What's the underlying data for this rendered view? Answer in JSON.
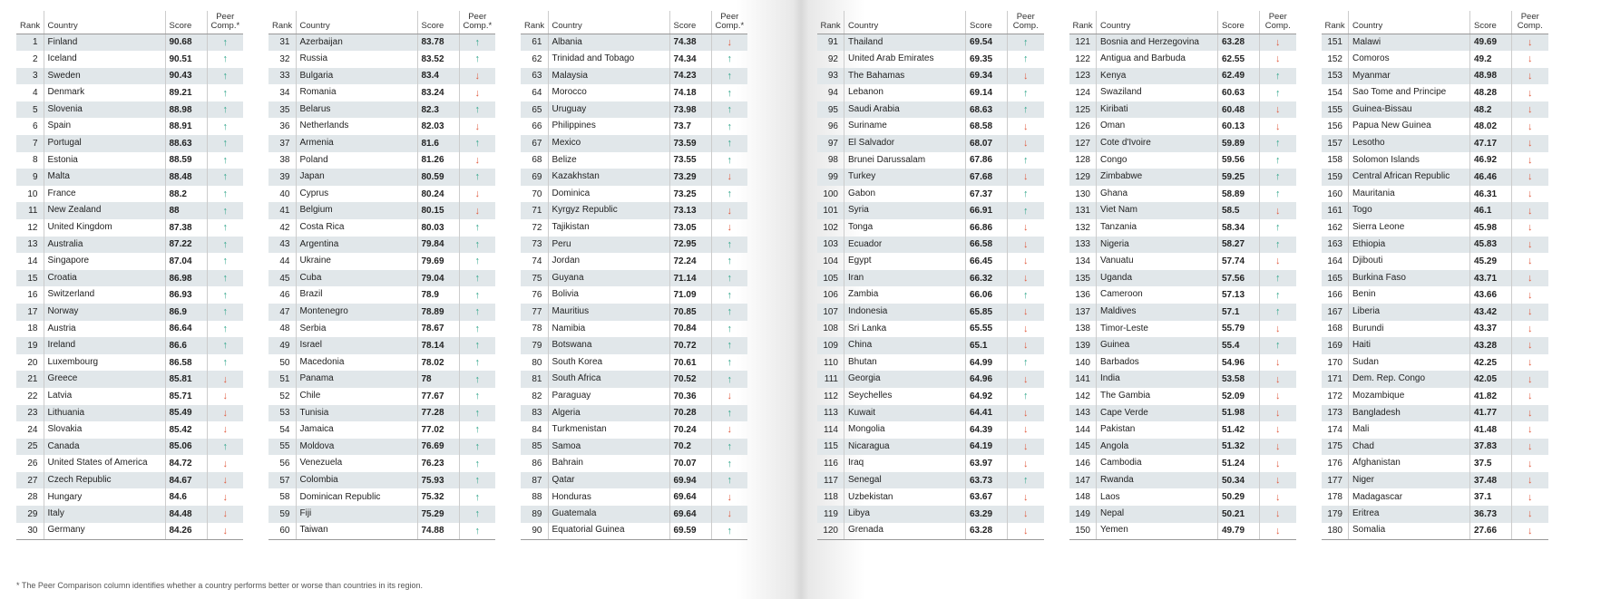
{
  "headers": {
    "rank": "Rank",
    "country": "Country",
    "score": "Score",
    "peer": "Peer\nComp.*",
    "peer_plain": "Peer\nComp."
  },
  "footnote": "* The Peer Comparison column identifies whether a country performs better or worse than countries in its region.",
  "colors": {
    "up": "#2fa58a",
    "down": "#e05a3e",
    "row_alt": "#e1e7ea",
    "border": "#999999"
  },
  "rows": [
    {
      "rank": 1,
      "country": "Finland",
      "score": "90.68",
      "peer": "up"
    },
    {
      "rank": 2,
      "country": "Iceland",
      "score": "90.51",
      "peer": "up"
    },
    {
      "rank": 3,
      "country": "Sweden",
      "score": "90.43",
      "peer": "up"
    },
    {
      "rank": 4,
      "country": "Denmark",
      "score": "89.21",
      "peer": "up"
    },
    {
      "rank": 5,
      "country": "Slovenia",
      "score": "88.98",
      "peer": "up"
    },
    {
      "rank": 6,
      "country": "Spain",
      "score": "88.91",
      "peer": "up"
    },
    {
      "rank": 7,
      "country": "Portugal",
      "score": "88.63",
      "peer": "up"
    },
    {
      "rank": 8,
      "country": "Estonia",
      "score": "88.59",
      "peer": "up"
    },
    {
      "rank": 9,
      "country": "Malta",
      "score": "88.48",
      "peer": "up"
    },
    {
      "rank": 10,
      "country": "France",
      "score": "88.2",
      "peer": "up"
    },
    {
      "rank": 11,
      "country": "New Zealand",
      "score": "88",
      "peer": "up"
    },
    {
      "rank": 12,
      "country": "United Kingdom",
      "score": "87.38",
      "peer": "up"
    },
    {
      "rank": 13,
      "country": "Australia",
      "score": "87.22",
      "peer": "up"
    },
    {
      "rank": 14,
      "country": "Singapore",
      "score": "87.04",
      "peer": "up"
    },
    {
      "rank": 15,
      "country": "Croatia",
      "score": "86.98",
      "peer": "up"
    },
    {
      "rank": 16,
      "country": "Switzerland",
      "score": "86.93",
      "peer": "up"
    },
    {
      "rank": 17,
      "country": "Norway",
      "score": "86.9",
      "peer": "up"
    },
    {
      "rank": 18,
      "country": "Austria",
      "score": "86.64",
      "peer": "up"
    },
    {
      "rank": 19,
      "country": "Ireland",
      "score": "86.6",
      "peer": "up"
    },
    {
      "rank": 20,
      "country": "Luxembourg",
      "score": "86.58",
      "peer": "up"
    },
    {
      "rank": 21,
      "country": "Greece",
      "score": "85.81",
      "peer": "down"
    },
    {
      "rank": 22,
      "country": "Latvia",
      "score": "85.71",
      "peer": "down"
    },
    {
      "rank": 23,
      "country": "Lithuania",
      "score": "85.49",
      "peer": "down"
    },
    {
      "rank": 24,
      "country": "Slovakia",
      "score": "85.42",
      "peer": "down"
    },
    {
      "rank": 25,
      "country": "Canada",
      "score": "85.06",
      "peer": "up"
    },
    {
      "rank": 26,
      "country": "United States of America",
      "score": "84.72",
      "peer": "down"
    },
    {
      "rank": 27,
      "country": "Czech Republic",
      "score": "84.67",
      "peer": "down"
    },
    {
      "rank": 28,
      "country": "Hungary",
      "score": "84.6",
      "peer": "down"
    },
    {
      "rank": 29,
      "country": "Italy",
      "score": "84.48",
      "peer": "down"
    },
    {
      "rank": 30,
      "country": "Germany",
      "score": "84.26",
      "peer": "down"
    },
    {
      "rank": 31,
      "country": "Azerbaijan",
      "score": "83.78",
      "peer": "up"
    },
    {
      "rank": 32,
      "country": "Russia",
      "score": "83.52",
      "peer": "up"
    },
    {
      "rank": 33,
      "country": "Bulgaria",
      "score": "83.4",
      "peer": "down"
    },
    {
      "rank": 34,
      "country": "Romania",
      "score": "83.24",
      "peer": "down"
    },
    {
      "rank": 35,
      "country": "Belarus",
      "score": "82.3",
      "peer": "up"
    },
    {
      "rank": 36,
      "country": "Netherlands",
      "score": "82.03",
      "peer": "down"
    },
    {
      "rank": 37,
      "country": "Armenia",
      "score": "81.6",
      "peer": "up"
    },
    {
      "rank": 38,
      "country": "Poland",
      "score": "81.26",
      "peer": "down"
    },
    {
      "rank": 39,
      "country": "Japan",
      "score": "80.59",
      "peer": "up"
    },
    {
      "rank": 40,
      "country": "Cyprus",
      "score": "80.24",
      "peer": "down"
    },
    {
      "rank": 41,
      "country": "Belgium",
      "score": "80.15",
      "peer": "down"
    },
    {
      "rank": 42,
      "country": "Costa Rica",
      "score": "80.03",
      "peer": "up"
    },
    {
      "rank": 43,
      "country": "Argentina",
      "score": "79.84",
      "peer": "up"
    },
    {
      "rank": 44,
      "country": "Ukraine",
      "score": "79.69",
      "peer": "up"
    },
    {
      "rank": 45,
      "country": "Cuba",
      "score": "79.04",
      "peer": "up"
    },
    {
      "rank": 46,
      "country": "Brazil",
      "score": "78.9",
      "peer": "up"
    },
    {
      "rank": 47,
      "country": "Montenegro",
      "score": "78.89",
      "peer": "up"
    },
    {
      "rank": 48,
      "country": "Serbia",
      "score": "78.67",
      "peer": "up"
    },
    {
      "rank": 49,
      "country": "Israel",
      "score": "78.14",
      "peer": "up"
    },
    {
      "rank": 50,
      "country": "Macedonia",
      "score": "78.02",
      "peer": "up"
    },
    {
      "rank": 51,
      "country": "Panama",
      "score": "78",
      "peer": "up"
    },
    {
      "rank": 52,
      "country": "Chile",
      "score": "77.67",
      "peer": "up"
    },
    {
      "rank": 53,
      "country": "Tunisia",
      "score": "77.28",
      "peer": "up"
    },
    {
      "rank": 54,
      "country": "Jamaica",
      "score": "77.02",
      "peer": "up"
    },
    {
      "rank": 55,
      "country": "Moldova",
      "score": "76.69",
      "peer": "up"
    },
    {
      "rank": 56,
      "country": "Venezuela",
      "score": "76.23",
      "peer": "up"
    },
    {
      "rank": 57,
      "country": "Colombia",
      "score": "75.93",
      "peer": "up"
    },
    {
      "rank": 58,
      "country": "Dominican Republic",
      "score": "75.32",
      "peer": "up"
    },
    {
      "rank": 59,
      "country": "Fiji",
      "score": "75.29",
      "peer": "up"
    },
    {
      "rank": 60,
      "country": "Taiwan",
      "score": "74.88",
      "peer": "up"
    },
    {
      "rank": 61,
      "country": "Albania",
      "score": "74.38",
      "peer": "down"
    },
    {
      "rank": 62,
      "country": "Trinidad and Tobago",
      "score": "74.34",
      "peer": "up"
    },
    {
      "rank": 63,
      "country": "Malaysia",
      "score": "74.23",
      "peer": "up"
    },
    {
      "rank": 64,
      "country": "Morocco",
      "score": "74.18",
      "peer": "up"
    },
    {
      "rank": 65,
      "country": "Uruguay",
      "score": "73.98",
      "peer": "up"
    },
    {
      "rank": 66,
      "country": "Philippines",
      "score": "73.7",
      "peer": "up"
    },
    {
      "rank": 67,
      "country": "Mexico",
      "score": "73.59",
      "peer": "up"
    },
    {
      "rank": 68,
      "country": "Belize",
      "score": "73.55",
      "peer": "up"
    },
    {
      "rank": 69,
      "country": "Kazakhstan",
      "score": "73.29",
      "peer": "down"
    },
    {
      "rank": 70,
      "country": "Dominica",
      "score": "73.25",
      "peer": "up"
    },
    {
      "rank": 71,
      "country": "Kyrgyz Republic",
      "score": "73.13",
      "peer": "down"
    },
    {
      "rank": 72,
      "country": "Tajikistan",
      "score": "73.05",
      "peer": "down"
    },
    {
      "rank": 73,
      "country": "Peru",
      "score": "72.95",
      "peer": "up"
    },
    {
      "rank": 74,
      "country": "Jordan",
      "score": "72.24",
      "peer": "up"
    },
    {
      "rank": 75,
      "country": "Guyana",
      "score": "71.14",
      "peer": "up"
    },
    {
      "rank": 76,
      "country": "Bolivia",
      "score": "71.09",
      "peer": "up"
    },
    {
      "rank": 77,
      "country": "Mauritius",
      "score": "70.85",
      "peer": "up"
    },
    {
      "rank": 78,
      "country": "Namibia",
      "score": "70.84",
      "peer": "up"
    },
    {
      "rank": 79,
      "country": "Botswana",
      "score": "70.72",
      "peer": "up"
    },
    {
      "rank": 80,
      "country": "South Korea",
      "score": "70.61",
      "peer": "up"
    },
    {
      "rank": 81,
      "country": "South Africa",
      "score": "70.52",
      "peer": "up"
    },
    {
      "rank": 82,
      "country": "Paraguay",
      "score": "70.36",
      "peer": "down"
    },
    {
      "rank": 83,
      "country": "Algeria",
      "score": "70.28",
      "peer": "up"
    },
    {
      "rank": 84,
      "country": "Turkmenistan",
      "score": "70.24",
      "peer": "down"
    },
    {
      "rank": 85,
      "country": "Samoa",
      "score": "70.2",
      "peer": "up"
    },
    {
      "rank": 86,
      "country": "Bahrain",
      "score": "70.07",
      "peer": "up"
    },
    {
      "rank": 87,
      "country": "Qatar",
      "score": "69.94",
      "peer": "up"
    },
    {
      "rank": 88,
      "country": "Honduras",
      "score": "69.64",
      "peer": "down"
    },
    {
      "rank": 89,
      "country": "Guatemala",
      "score": "69.64",
      "peer": "down"
    },
    {
      "rank": 90,
      "country": "Equatorial Guinea",
      "score": "69.59",
      "peer": "up"
    },
    {
      "rank": 91,
      "country": "Thailand",
      "score": "69.54",
      "peer": "up"
    },
    {
      "rank": 92,
      "country": "United Arab Emirates",
      "score": "69.35",
      "peer": "up"
    },
    {
      "rank": 93,
      "country": "The Bahamas",
      "score": "69.34",
      "peer": "down"
    },
    {
      "rank": 94,
      "country": "Lebanon",
      "score": "69.14",
      "peer": "up"
    },
    {
      "rank": 95,
      "country": "Saudi Arabia",
      "score": "68.63",
      "peer": "up"
    },
    {
      "rank": 96,
      "country": "Suriname",
      "score": "68.58",
      "peer": "down"
    },
    {
      "rank": 97,
      "country": "El Salvador",
      "score": "68.07",
      "peer": "down"
    },
    {
      "rank": 98,
      "country": "Brunei Darussalam",
      "score": "67.86",
      "peer": "up"
    },
    {
      "rank": 99,
      "country": "Turkey",
      "score": "67.68",
      "peer": "down"
    },
    {
      "rank": 100,
      "country": "Gabon",
      "score": "67.37",
      "peer": "up"
    },
    {
      "rank": 101,
      "country": "Syria",
      "score": "66.91",
      "peer": "up"
    },
    {
      "rank": 102,
      "country": "Tonga",
      "score": "66.86",
      "peer": "down"
    },
    {
      "rank": 103,
      "country": "Ecuador",
      "score": "66.58",
      "peer": "down"
    },
    {
      "rank": 104,
      "country": "Egypt",
      "score": "66.45",
      "peer": "down"
    },
    {
      "rank": 105,
      "country": "Iran",
      "score": "66.32",
      "peer": "down"
    },
    {
      "rank": 106,
      "country": "Zambia",
      "score": "66.06",
      "peer": "up"
    },
    {
      "rank": 107,
      "country": "Indonesia",
      "score": "65.85",
      "peer": "down"
    },
    {
      "rank": 108,
      "country": "Sri Lanka",
      "score": "65.55",
      "peer": "down"
    },
    {
      "rank": 109,
      "country": "China",
      "score": "65.1",
      "peer": "down"
    },
    {
      "rank": 110,
      "country": "Bhutan",
      "score": "64.99",
      "peer": "up"
    },
    {
      "rank": 111,
      "country": "Georgia",
      "score": "64.96",
      "peer": "down"
    },
    {
      "rank": 112,
      "country": "Seychelles",
      "score": "64.92",
      "peer": "up"
    },
    {
      "rank": 113,
      "country": "Kuwait",
      "score": "64.41",
      "peer": "down"
    },
    {
      "rank": 114,
      "country": "Mongolia",
      "score": "64.39",
      "peer": "down"
    },
    {
      "rank": 115,
      "country": "Nicaragua",
      "score": "64.19",
      "peer": "down"
    },
    {
      "rank": 116,
      "country": "Iraq",
      "score": "63.97",
      "peer": "down"
    },
    {
      "rank": 117,
      "country": "Senegal",
      "score": "63.73",
      "peer": "up"
    },
    {
      "rank": 118,
      "country": "Uzbekistan",
      "score": "63.67",
      "peer": "down"
    },
    {
      "rank": 119,
      "country": "Libya",
      "score": "63.29",
      "peer": "down"
    },
    {
      "rank": 120,
      "country": "Grenada",
      "score": "63.28",
      "peer": "down"
    },
    {
      "rank": 121,
      "country": "Bosnia and Herzegovina",
      "score": "63.28",
      "peer": "down"
    },
    {
      "rank": 122,
      "country": "Antigua and Barbuda",
      "score": "62.55",
      "peer": "down"
    },
    {
      "rank": 123,
      "country": "Kenya",
      "score": "62.49",
      "peer": "up"
    },
    {
      "rank": 124,
      "country": "Swaziland",
      "score": "60.63",
      "peer": "up"
    },
    {
      "rank": 125,
      "country": "Kiribati",
      "score": "60.48",
      "peer": "down"
    },
    {
      "rank": 126,
      "country": "Oman",
      "score": "60.13",
      "peer": "down"
    },
    {
      "rank": 127,
      "country": "Cote d'Ivoire",
      "score": "59.89",
      "peer": "up"
    },
    {
      "rank": 128,
      "country": "Congo",
      "score": "59.56",
      "peer": "up"
    },
    {
      "rank": 129,
      "country": "Zimbabwe",
      "score": "59.25",
      "peer": "up"
    },
    {
      "rank": 130,
      "country": "Ghana",
      "score": "58.89",
      "peer": "up"
    },
    {
      "rank": 131,
      "country": "Viet Nam",
      "score": "58.5",
      "peer": "down"
    },
    {
      "rank": 132,
      "country": "Tanzania",
      "score": "58.34",
      "peer": "up"
    },
    {
      "rank": 133,
      "country": "Nigeria",
      "score": "58.27",
      "peer": "up"
    },
    {
      "rank": 134,
      "country": "Vanuatu",
      "score": "57.74",
      "peer": "down"
    },
    {
      "rank": 135,
      "country": "Uganda",
      "score": "57.56",
      "peer": "up"
    },
    {
      "rank": 136,
      "country": "Cameroon",
      "score": "57.13",
      "peer": "up"
    },
    {
      "rank": 137,
      "country": "Maldives",
      "score": "57.1",
      "peer": "up"
    },
    {
      "rank": 138,
      "country": "Timor-Leste",
      "score": "55.79",
      "peer": "down"
    },
    {
      "rank": 139,
      "country": "Guinea",
      "score": "55.4",
      "peer": "up"
    },
    {
      "rank": 140,
      "country": "Barbados",
      "score": "54.96",
      "peer": "down"
    },
    {
      "rank": 141,
      "country": "India",
      "score": "53.58",
      "peer": "down"
    },
    {
      "rank": 142,
      "country": "The Gambia",
      "score": "52.09",
      "peer": "down"
    },
    {
      "rank": 143,
      "country": "Cape Verde",
      "score": "51.98",
      "peer": "down"
    },
    {
      "rank": 144,
      "country": "Pakistan",
      "score": "51.42",
      "peer": "down"
    },
    {
      "rank": 145,
      "country": "Angola",
      "score": "51.32",
      "peer": "down"
    },
    {
      "rank": 146,
      "country": "Cambodia",
      "score": "51.24",
      "peer": "down"
    },
    {
      "rank": 147,
      "country": "Rwanda",
      "score": "50.34",
      "peer": "down"
    },
    {
      "rank": 148,
      "country": "Laos",
      "score": "50.29",
      "peer": "down"
    },
    {
      "rank": 149,
      "country": "Nepal",
      "score": "50.21",
      "peer": "down"
    },
    {
      "rank": 150,
      "country": "Yemen",
      "score": "49.79",
      "peer": "down"
    },
    {
      "rank": 151,
      "country": "Malawi",
      "score": "49.69",
      "peer": "down"
    },
    {
      "rank": 152,
      "country": "Comoros",
      "score": "49.2",
      "peer": "down"
    },
    {
      "rank": 153,
      "country": "Myanmar",
      "score": "48.98",
      "peer": "down"
    },
    {
      "rank": 154,
      "country": "Sao Tome and Principe",
      "score": "48.28",
      "peer": "down"
    },
    {
      "rank": 155,
      "country": "Guinea-Bissau",
      "score": "48.2",
      "peer": "down"
    },
    {
      "rank": 156,
      "country": "Papua New Guinea",
      "score": "48.02",
      "peer": "down"
    },
    {
      "rank": 157,
      "country": "Lesotho",
      "score": "47.17",
      "peer": "down"
    },
    {
      "rank": 158,
      "country": "Solomon Islands",
      "score": "46.92",
      "peer": "down"
    },
    {
      "rank": 159,
      "country": "Central African Republic",
      "score": "46.46",
      "peer": "down"
    },
    {
      "rank": 160,
      "country": "Mauritania",
      "score": "46.31",
      "peer": "down"
    },
    {
      "rank": 161,
      "country": "Togo",
      "score": "46.1",
      "peer": "down"
    },
    {
      "rank": 162,
      "country": "Sierra Leone",
      "score": "45.98",
      "peer": "down"
    },
    {
      "rank": 163,
      "country": "Ethiopia",
      "score": "45.83",
      "peer": "down"
    },
    {
      "rank": 164,
      "country": "Djibouti",
      "score": "45.29",
      "peer": "down"
    },
    {
      "rank": 165,
      "country": "Burkina Faso",
      "score": "43.71",
      "peer": "down"
    },
    {
      "rank": 166,
      "country": "Benin",
      "score": "43.66",
      "peer": "down"
    },
    {
      "rank": 167,
      "country": "Liberia",
      "score": "43.42",
      "peer": "down"
    },
    {
      "rank": 168,
      "country": "Burundi",
      "score": "43.37",
      "peer": "down"
    },
    {
      "rank": 169,
      "country": "Haiti",
      "score": "43.28",
      "peer": "down"
    },
    {
      "rank": 170,
      "country": "Sudan",
      "score": "42.25",
      "peer": "down"
    },
    {
      "rank": 171,
      "country": "Dem. Rep. Congo",
      "score": "42.05",
      "peer": "down"
    },
    {
      "rank": 172,
      "country": "Mozambique",
      "score": "41.82",
      "peer": "down"
    },
    {
      "rank": 173,
      "country": "Bangladesh",
      "score": "41.77",
      "peer": "down"
    },
    {
      "rank": 174,
      "country": "Mali",
      "score": "41.48",
      "peer": "down"
    },
    {
      "rank": 175,
      "country": "Chad",
      "score": "37.83",
      "peer": "down"
    },
    {
      "rank": 176,
      "country": "Afghanistan",
      "score": "37.5",
      "peer": "down"
    },
    {
      "rank": 177,
      "country": "Niger",
      "score": "37.48",
      "peer": "down"
    },
    {
      "rank": 178,
      "country": "Madagascar",
      "score": "37.1",
      "peer": "down"
    },
    {
      "rank": 179,
      "country": "Eritrea",
      "score": "36.73",
      "peer": "down"
    },
    {
      "rank": 180,
      "country": "Somalia",
      "score": "27.66",
      "peer": "down"
    }
  ]
}
